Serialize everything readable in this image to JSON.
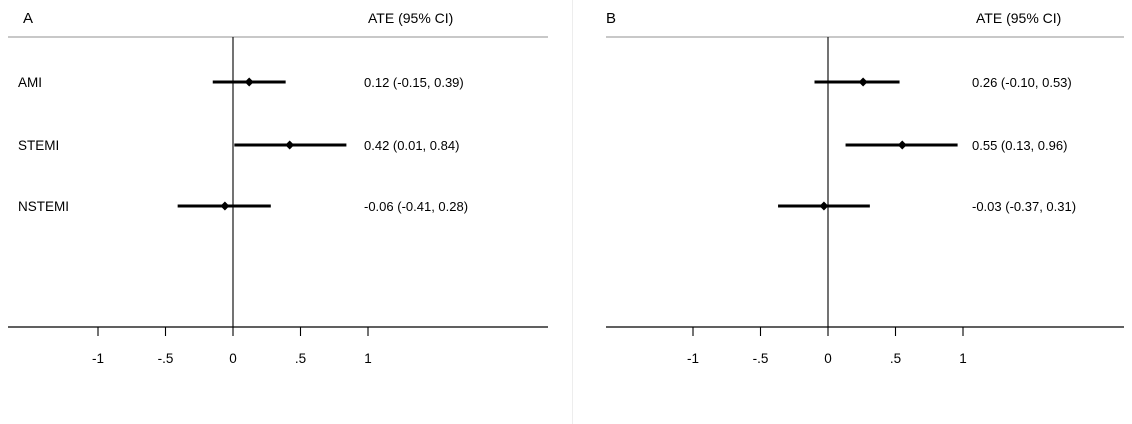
{
  "chart_data": [
    {
      "type": "forest",
      "panel_label": "A",
      "header": "ATE (95% CI)",
      "rows": [
        {
          "label": "AMI",
          "estimate": 0.12,
          "lower": -0.15,
          "upper": 0.39,
          "ci_text": "0.12 (-0.15, 0.39)"
        },
        {
          "label": "STEMI",
          "estimate": 0.42,
          "lower": 0.01,
          "upper": 0.84,
          "ci_text": "0.42 (0.01, 0.84)"
        },
        {
          "label": "NSTEMI",
          "estimate": -0.06,
          "lower": -0.41,
          "upper": 0.28,
          "ci_text": "-0.06 (-0.41, 0.28)"
        }
      ],
      "reference_line": 0,
      "x_ticks": [
        -1,
        -0.5,
        0,
        0.5,
        1
      ],
      "x_tick_labels": [
        "-1",
        "-.5",
        "0",
        ".5",
        "1"
      ],
      "xlim": [
        -1.65,
        2.3
      ],
      "xlabel": "",
      "ylabel": ""
    },
    {
      "type": "forest",
      "panel_label": "B",
      "header": "ATE (95% CI)",
      "rows": [
        {
          "label": "",
          "estimate": 0.26,
          "lower": -0.1,
          "upper": 0.53,
          "ci_text": "0.26 (-0.10, 0.53)"
        },
        {
          "label": "",
          "estimate": 0.55,
          "lower": 0.13,
          "upper": 0.96,
          "ci_text": "0.55 (0.13, 0.96)"
        },
        {
          "label": "",
          "estimate": -0.03,
          "lower": -0.37,
          "upper": 0.31,
          "ci_text": "-0.03 (-0.37, 0.31)"
        }
      ],
      "reference_line": 0,
      "x_ticks": [
        -1,
        -0.5,
        0,
        0.5,
        1
      ],
      "x_tick_labels": [
        "-1",
        "-.5",
        "0",
        ".5",
        "1"
      ],
      "xlim": [
        -1.65,
        2.3
      ],
      "xlabel": "",
      "ylabel": ""
    }
  ]
}
